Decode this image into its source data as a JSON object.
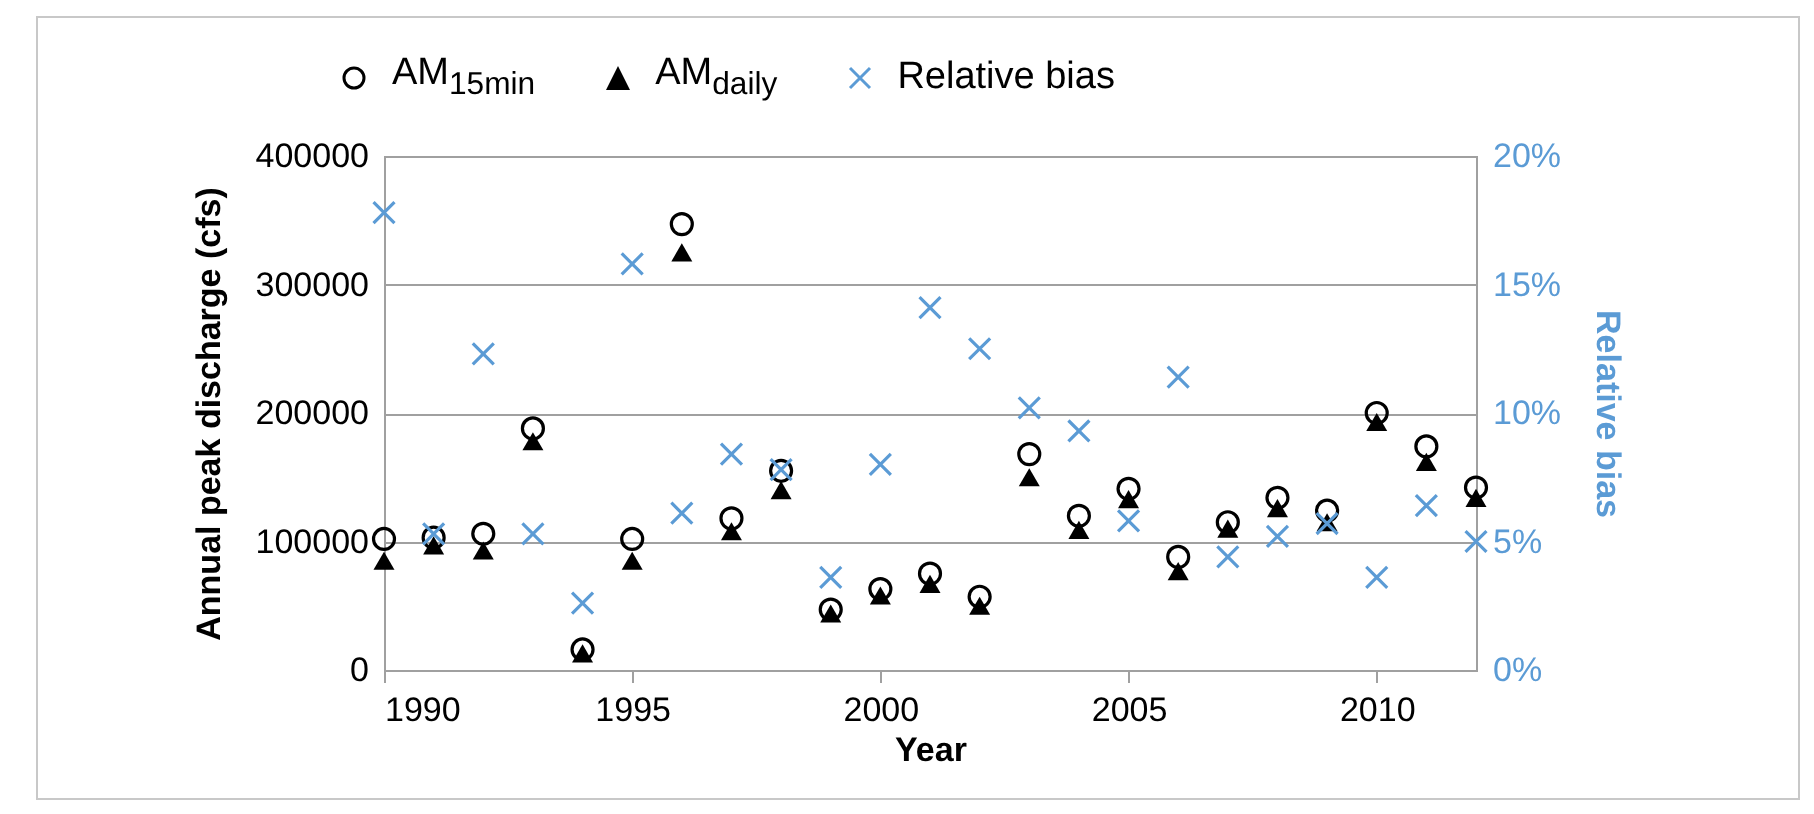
{
  "chart_data": {
    "type": "scatter",
    "xlabel": "Year",
    "ylabel": "Annual peak discharge (cfs)",
    "y2label": "Relative bias",
    "x": [
      1990,
      1991,
      1992,
      1993,
      1994,
      1995,
      1996,
      1997,
      1998,
      1999,
      2000,
      2001,
      2002,
      2003,
      2004,
      2005,
      2006,
      2007,
      2008,
      2009,
      2010,
      2011,
      2012
    ],
    "series": [
      {
        "name": "AM$_{15min}$",
        "color": "#000000",
        "marker": "circle",
        "values": [
          102000,
          103000,
          106000,
          188000,
          16000,
          102000,
          347000,
          118000,
          155000,
          47000,
          63000,
          75000,
          57000,
          168000,
          120000,
          141000,
          88000,
          115000,
          134000,
          124000,
          200000,
          174000,
          142000
        ]
      },
      {
        "name": "AM$_{daily}$",
        "color": "#000000",
        "marker": "triangle",
        "values": [
          85000,
          97000,
          93000,
          178000,
          13000,
          85000,
          325000,
          108000,
          140000,
          44000,
          58000,
          67000,
          50000,
          150000,
          109000,
          133000,
          77000,
          110000,
          126000,
          115000,
          193000,
          162000,
          134000
        ]
      },
      {
        "name": "Relative bias",
        "color": "#5b9bd5",
        "marker": "cross",
        "axis": "y2",
        "values": [
          17.8,
          5.3,
          12.3,
          5.3,
          2.6,
          15.8,
          6.1,
          8.4,
          7.8,
          3.6,
          8.0,
          14.1,
          12.5,
          10.2,
          9.3,
          5.8,
          11.4,
          4.4,
          5.2,
          5.7,
          3.6,
          6.4,
          5.0
        ]
      }
    ],
    "xlim": [
      1990,
      2012
    ],
    "xticks": [
      1990,
      1995,
      2000,
      2005,
      2010
    ],
    "ylim": [
      0,
      400000
    ],
    "yticks": [
      0,
      100000,
      200000,
      300000,
      400000
    ],
    "y2lim": [
      0,
      20
    ],
    "y2ticks": [
      {
        "value": 0,
        "label": "0%"
      },
      {
        "value": 5,
        "label": "5%"
      },
      {
        "value": 10,
        "label": "10%"
      },
      {
        "value": 15,
        "label": "15%"
      },
      {
        "value": 20,
        "label": "20%"
      }
    ],
    "grid": "y",
    "legend": "top"
  }
}
